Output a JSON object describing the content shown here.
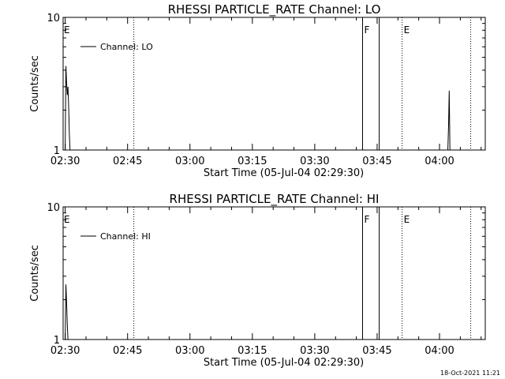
{
  "footer_date": "18-Oct-2021 11:21",
  "chart_data": [
    {
      "type": "line",
      "title": "RHESSI PARTICLE_RATE Channel: LO",
      "xlabel": "Start Time (05-Jul-04 02:29:30)",
      "ylabel": "Counts/sec",
      "y_scale": "log",
      "ylim": [
        1,
        10
      ],
      "xlim": [
        "02:29:30",
        "04:11:00"
      ],
      "x_ticks": [
        "02:30",
        "02:45",
        "03:00",
        "03:15",
        "03:30",
        "03:45",
        "04:00"
      ],
      "y_ticks": [
        "1",
        "10"
      ],
      "legend": {
        "position": "top-left",
        "entries": [
          "Channel: LO"
        ]
      },
      "series": [
        {
          "name": "Channel: LO",
          "x": [
            "02:30:00",
            "02:30:10",
            "02:30:20",
            "02:30:30",
            "02:30:40",
            "02:30:50",
            "02:31:00",
            "02:31:10",
            "04:02:00",
            "04:02:10",
            "04:02:20",
            "04:02:30"
          ],
          "y": [
            1.0,
            4.3,
            3.2,
            2.6,
            3.0,
            2.1,
            1.3,
            1.0,
            1.0,
            1.5,
            2.8,
            1.0
          ]
        }
      ],
      "vlines": [
        {
          "x": "02:46:30",
          "style": "dotted"
        },
        {
          "x": "03:41:30",
          "style": "solid",
          "label": "F"
        },
        {
          "x": "03:45:30",
          "style": "solid"
        },
        {
          "x": "03:51:00",
          "style": "dotted",
          "label": "E"
        },
        {
          "x": "04:07:30",
          "style": "dotted"
        }
      ],
      "start_marker": "E"
    },
    {
      "type": "line",
      "title": "RHESSI PARTICLE_RATE Channel: HI",
      "xlabel": "Start Time (05-Jul-04 02:29:30)",
      "ylabel": "Counts/sec",
      "y_scale": "log",
      "ylim": [
        1,
        10
      ],
      "xlim": [
        "02:29:30",
        "04:11:00"
      ],
      "x_ticks": [
        "02:30",
        "02:45",
        "03:00",
        "03:15",
        "03:30",
        "03:45",
        "04:00"
      ],
      "y_ticks": [
        "1",
        "10"
      ],
      "legend": {
        "position": "top-left",
        "entries": [
          "Channel: HI"
        ]
      },
      "series": [
        {
          "name": "Channel: HI",
          "x": [
            "02:30:00",
            "02:30:10",
            "02:30:20",
            "02:30:30",
            "02:30:40"
          ],
          "y": [
            1.0,
            2.6,
            1.9,
            1.3,
            1.0
          ]
        }
      ],
      "vlines": [
        {
          "x": "02:46:30",
          "style": "dotted"
        },
        {
          "x": "03:41:30",
          "style": "solid",
          "label": "F"
        },
        {
          "x": "03:45:30",
          "style": "solid"
        },
        {
          "x": "03:51:00",
          "style": "dotted",
          "label": "E"
        },
        {
          "x": "04:07:30",
          "style": "dotted"
        }
      ],
      "start_marker": "E"
    }
  ]
}
